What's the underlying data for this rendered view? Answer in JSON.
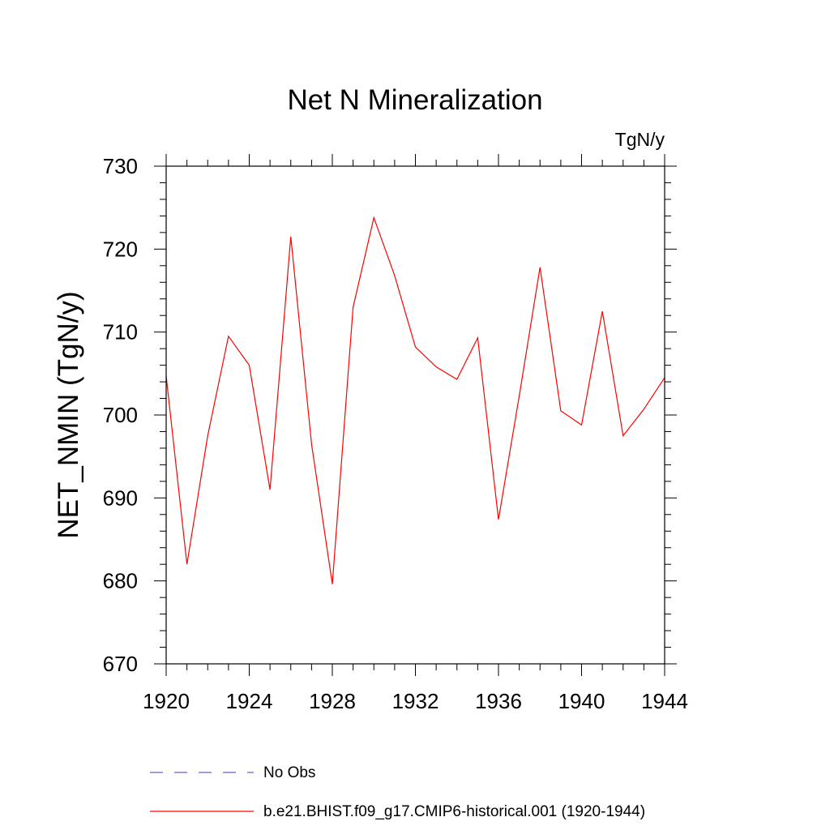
{
  "chart_data": {
    "type": "line",
    "title": "Net N Mineralization",
    "units": "TgN/y",
    "xlabel": "",
    "ylabel": "NET_NMIN  (TgN/y)",
    "xlim": [
      1920,
      1944
    ],
    "ylim": [
      670,
      730
    ],
    "x_ticks": [
      "1920",
      "1924",
      "1928",
      "1932",
      "1936",
      "1940",
      "1944"
    ],
    "y_ticks": [
      "670",
      "680",
      "690",
      "700",
      "710",
      "720",
      "730"
    ],
    "x": [
      1920,
      1921,
      1922,
      1923,
      1924,
      1925,
      1926,
      1927,
      1928,
      1929,
      1930,
      1931,
      1932,
      1933,
      1934,
      1935,
      1936,
      1937,
      1938,
      1939,
      1940,
      1941,
      1942,
      1943,
      1944
    ],
    "series": [
      {
        "name": "b.e21.BHIST.f09_g17.CMIP6-historical.001 (1920-1944)",
        "color": "#ff0000",
        "values": [
          704.7,
          682.0,
          697.5,
          709.5,
          706.0,
          691.0,
          721.5,
          696.5,
          679.6,
          713.0,
          723.8,
          716.8,
          708.2,
          705.8,
          704.3,
          709.3,
          687.4,
          702.3,
          717.8,
          700.5,
          698.8,
          712.5,
          697.5,
          700.7,
          704.5
        ]
      }
    ],
    "legend": [
      {
        "label": "No Obs",
        "color": "#6a5acd",
        "style": "dashed"
      },
      {
        "label": "b.e21.BHIST.f09_g17.CMIP6-historical.001 (1920-1944)",
        "color": "#ff0000",
        "style": "solid"
      }
    ],
    "grid": false,
    "legend_position": "bottom"
  }
}
